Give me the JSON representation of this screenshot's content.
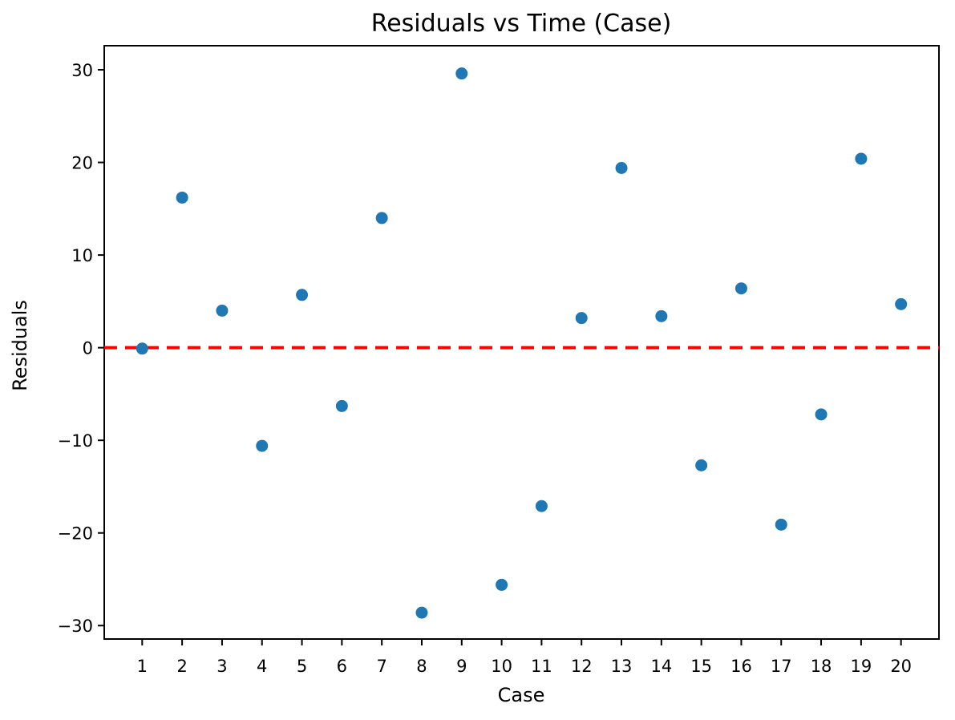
{
  "chart_data": {
    "type": "scatter",
    "title": "Residuals vs Time (Case)",
    "xlabel": "Case",
    "ylabel": "Residuals",
    "x": [
      1,
      2,
      3,
      4,
      5,
      6,
      7,
      8,
      9,
      10,
      11,
      12,
      13,
      14,
      15,
      16,
      17,
      18,
      19,
      20
    ],
    "y": [
      -0.1,
      16.2,
      4.0,
      -10.6,
      5.7,
      -6.3,
      14.0,
      -28.6,
      29.6,
      -25.6,
      -17.1,
      3.2,
      19.4,
      3.4,
      -12.7,
      6.4,
      -19.1,
      -7.2,
      20.4,
      4.7
    ],
    "x_tick_labels": [
      "1",
      "2",
      "3",
      "4",
      "5",
      "6",
      "7",
      "8",
      "9",
      "10",
      "11",
      "12",
      "13",
      "14",
      "15",
      "16",
      "17",
      "18",
      "19",
      "20"
    ],
    "y_ticks": [
      -30,
      -20,
      -10,
      0,
      10,
      20,
      30
    ],
    "y_tick_labels": [
      "−30",
      "−20",
      "−10",
      "0",
      "10",
      "20",
      "30"
    ],
    "xlim": [
      0.05,
      20.95
    ],
    "ylim": [
      -31.45,
      32.6
    ],
    "grid": false,
    "legend": null,
    "marker_color": "#1f77b4",
    "marker_radius": 7.5,
    "axis_color": "#000000",
    "zero_line": {
      "y": 0,
      "color": "#ff0000",
      "style": "dashed"
    }
  }
}
